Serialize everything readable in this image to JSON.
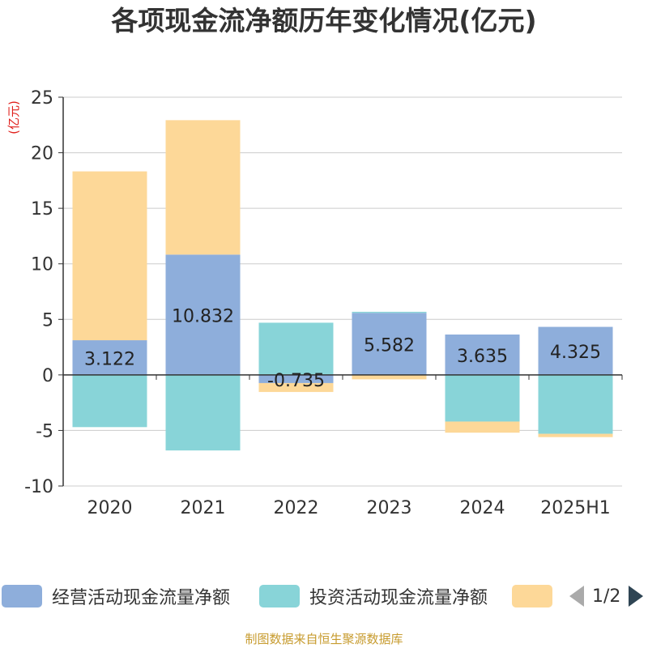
{
  "title": "各项现金流净额历年变化情况(亿元)",
  "source_note": "制图数据来自恒生聚源数据库",
  "legend": {
    "items": [
      {
        "label": "经营活动现金流量净额",
        "color": "#8eaedb"
      },
      {
        "label": "投资活动现金流量净额",
        "color": "#88d4d8"
      },
      {
        "label": "",
        "color": "#fdd898"
      }
    ],
    "page": "1/2"
  },
  "chart_data": {
    "type": "bar",
    "stacked": true,
    "categories": [
      "2020",
      "2021",
      "2022",
      "2023",
      "2024",
      "2025H1"
    ],
    "ylabel": "(亿元)",
    "ylim": [
      -10,
      25
    ],
    "yticks": [
      25,
      20,
      15,
      10,
      5,
      0,
      -5,
      -10
    ],
    "grid": true,
    "legend_position": "bottom",
    "series": [
      {
        "name": "经营活动现金流量净额",
        "color": "#8eaedb",
        "values": [
          3.122,
          10.832,
          -0.735,
          5.582,
          3.635,
          4.325
        ],
        "labels": [
          "3.122",
          "10.832",
          "-0.735",
          "5.582",
          "3.635",
          "4.325"
        ]
      },
      {
        "name": "投资活动现金流量净额",
        "color": "#88d4d8",
        "values": [
          -4.7,
          -6.8,
          4.7,
          0.1,
          -4.2,
          -5.3
        ]
      },
      {
        "name": "",
        "color": "#fdd898",
        "values": [
          15.2,
          12.1,
          -0.8,
          -0.4,
          -1.0,
          -0.3
        ]
      }
    ]
  }
}
